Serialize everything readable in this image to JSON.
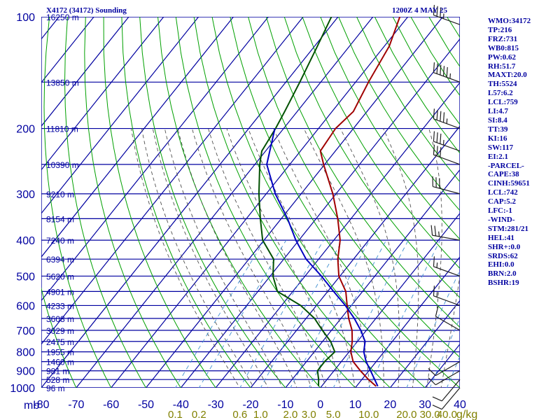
{
  "title": "X4172 (34172) Sounding",
  "datetime": "1200Z  4 MAY 25",
  "units": {
    "pressure": "mb",
    "mixing_ratio": "g/kg"
  },
  "colors": {
    "grid": "#0000a0",
    "dry_adiabat": "#00a000",
    "temperature": "#a00000",
    "dewpoint": "#005000",
    "parcel": "#0000c0",
    "moist_adiabat": "#505050",
    "mixing_ratio": "#4090d0",
    "mixing_ratio_label": "#808000",
    "wind": "#202020"
  },
  "indices": [
    "WMO:34172",
    "TP:216",
    "FRZ:731",
    "WB0:815",
    "PW:0.62",
    "RH:51.7",
    "MAXT:20.0",
    "TH:5524",
    "L57:6.2",
    "LCL:759",
    "LI:4.7",
    "SI:8.4",
    "TT:39",
    "KI:16",
    "SW:117",
    "EI:2.1",
    "-PARCEL-",
    "CAPE:38",
    "CINH:59651",
    "LCL:742",
    "CAP:5.2",
    "LFC:-1",
    "-WIND-",
    "STM:281/21",
    "HEL:41",
    "SHR+:0.0",
    "SRDS:62",
    "EHI:0.0",
    "BRN:2.0",
    "BSHR:19"
  ],
  "chart_data": {
    "type": "line",
    "subtype": "skew-T log-P",
    "y_scale": "log",
    "ylim": [
      1000,
      100
    ],
    "xlim": [
      -80,
      40
    ],
    "pressure_levels": [
      100,
      200,
      300,
      400,
      500,
      600,
      700,
      800,
      900,
      1000
    ],
    "temperature_ticks": [
      -80,
      -70,
      -60,
      -50,
      -40,
      -30,
      -20,
      -10,
      0,
      10,
      20,
      30,
      40
    ],
    "mixing_ratio_ticks": [
      "0.1",
      "0.2",
      "0.6",
      "1.0",
      "2.0",
      "3.0",
      "5.0",
      "10.0",
      "20.0",
      "30.0",
      "40.0"
    ],
    "height_labels": [
      {
        "p": 100,
        "label": "16250 m"
      },
      {
        "p": 150,
        "label": "13850 m"
      },
      {
        "p": 200,
        "label": "11810 m"
      },
      {
        "p": 250,
        "label": "10390 m"
      },
      {
        "p": 300,
        "label": "9210 m"
      },
      {
        "p": 350,
        "label": "8154 m"
      },
      {
        "p": 400,
        "label": "7240 m"
      },
      {
        "p": 450,
        "label": "6394 m"
      },
      {
        "p": 500,
        "label": "5620 m"
      },
      {
        "p": 550,
        "label": "4901 m"
      },
      {
        "p": 600,
        "label": "4233 m"
      },
      {
        "p": 650,
        "label": "3608 m"
      },
      {
        "p": 700,
        "label": "3029 m"
      },
      {
        "p": 750,
        "label": "2475 m"
      },
      {
        "p": 800,
        "label": "1955 m"
      },
      {
        "p": 850,
        "label": "1460 m"
      },
      {
        "p": 900,
        "label": "981 m"
      },
      {
        "p": 950,
        "label": "528 m"
      },
      {
        "p": 1000,
        "label": "96 m"
      }
    ],
    "series": [
      {
        "key": "temperature",
        "values": [
          [
            100,
            -62.3
          ],
          [
            120,
            -58.6
          ],
          [
            150,
            -56.3
          ],
          [
            180,
            -53.9
          ],
          [
            200,
            -55.1
          ],
          [
            230,
            -54.3
          ],
          [
            250,
            -50.3
          ],
          [
            300,
            -40.9
          ],
          [
            350,
            -33.8
          ],
          [
            400,
            -28.2
          ],
          [
            450,
            -24.5
          ],
          [
            500,
            -20.3
          ],
          [
            550,
            -14.8
          ],
          [
            600,
            -11.2
          ],
          [
            650,
            -7.8
          ],
          [
            700,
            -4.1
          ],
          [
            750,
            -1.5
          ],
          [
            800,
            0.5
          ],
          [
            850,
            3.4
          ],
          [
            900,
            7.6
          ],
          [
            950,
            11.9
          ],
          [
            990,
            15.6
          ]
        ]
      },
      {
        "key": "dewpoint",
        "values": [
          [
            100,
            -81.9
          ],
          [
            120,
            -79.2
          ],
          [
            150,
            -76.0
          ],
          [
            180,
            -73.6
          ],
          [
            200,
            -72.3
          ],
          [
            230,
            -71.1
          ],
          [
            250,
            -68.6
          ],
          [
            300,
            -62.1
          ],
          [
            350,
            -56.0
          ],
          [
            400,
            -50.4
          ],
          [
            450,
            -42.9
          ],
          [
            500,
            -39.2
          ],
          [
            550,
            -34.4
          ],
          [
            600,
            -24.5
          ],
          [
            650,
            -17.6
          ],
          [
            700,
            -12.6
          ],
          [
            750,
            -7.7
          ],
          [
            800,
            -4.1
          ],
          [
            850,
            -4.8
          ],
          [
            900,
            -4.7
          ],
          [
            950,
            -2.4
          ],
          [
            990,
            -0.9
          ]
        ]
      },
      {
        "key": "parcel",
        "values": [
          [
            200,
            -72.5
          ],
          [
            250,
            -66.6
          ],
          [
            300,
            -57.4
          ],
          [
            350,
            -48.2
          ],
          [
            400,
            -40.9
          ],
          [
            450,
            -33.6
          ],
          [
            500,
            -25.3
          ],
          [
            550,
            -18.3
          ],
          [
            600,
            -11.7
          ],
          [
            650,
            -6.2
          ],
          [
            700,
            -1.6
          ],
          [
            750,
            2.2
          ],
          [
            800,
            4.2
          ],
          [
            850,
            7.1
          ],
          [
            900,
            10.5
          ],
          [
            990,
            16.1
          ]
        ]
      }
    ],
    "wind_barbs": [
      {
        "p": 105,
        "dir": 290,
        "spd": 35
      },
      {
        "p": 150,
        "dir": 290,
        "spd": 55
      },
      {
        "p": 200,
        "dir": 290,
        "spd": 45
      },
      {
        "p": 230,
        "dir": 290,
        "spd": 35
      },
      {
        "p": 250,
        "dir": 290,
        "spd": 30
      },
      {
        "p": 300,
        "dir": 285,
        "spd": 30
      },
      {
        "p": 400,
        "dir": 280,
        "spd": 25
      },
      {
        "p": 500,
        "dir": 290,
        "spd": 15
      },
      {
        "p": 600,
        "dir": 290,
        "spd": 15
      },
      {
        "p": 700,
        "dir": 300,
        "spd": 10
      },
      {
        "p": 850,
        "dir": 240,
        "spd": 10
      },
      {
        "p": 900,
        "dir": 240,
        "spd": 10
      },
      {
        "p": 950,
        "dir": 220,
        "spd": 10
      },
      {
        "p": 1000,
        "dir": 220,
        "spd": 10
      }
    ]
  }
}
